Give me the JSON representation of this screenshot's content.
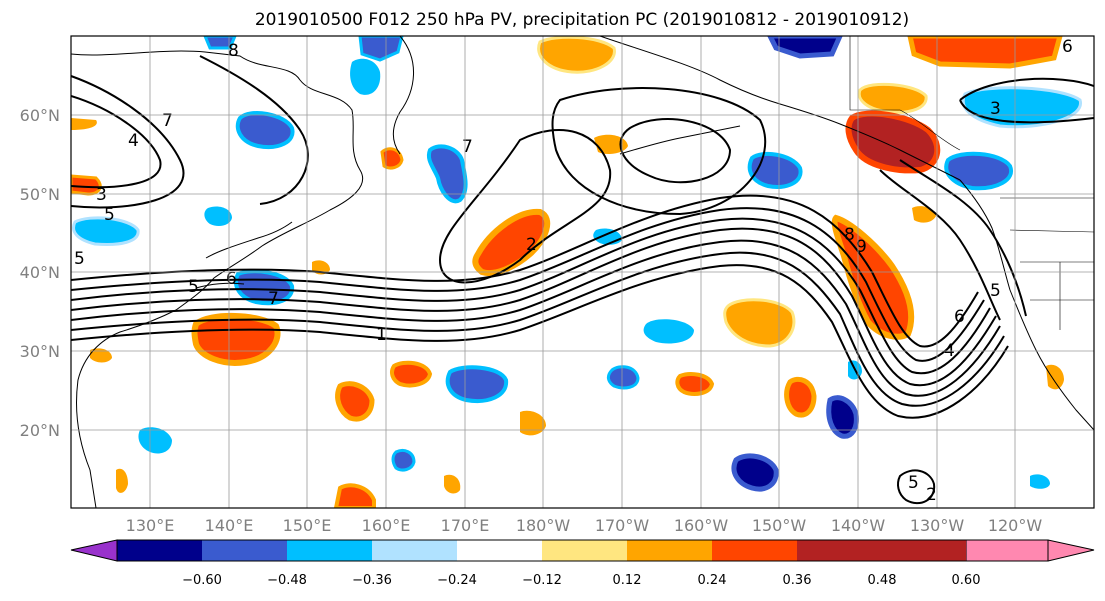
{
  "title": "2019010500 F012 250 hPa PV, precipitation PC (2019010812 - 2019010912)",
  "lat_labels": [
    "60°N",
    "50°N",
    "40°N",
    "30°N",
    "20°N"
  ],
  "lon_labels": [
    "130°E",
    "140°E",
    "150°E",
    "160°E",
    "170°E",
    "180°W",
    "170°W",
    "160°W",
    "150°W",
    "140°W",
    "130°W",
    "120°W"
  ],
  "colorbar": {
    "colors": [
      "#9932cc",
      "#00008b",
      "#3a5bcf",
      "#00bfff",
      "#b0e2ff",
      "#ffffff",
      "#ffe680",
      "#ffa500",
      "#ff4500",
      "#b22222",
      "#ff88b0"
    ],
    "tick_labels": [
      "−0.60",
      "−0.48",
      "−0.36",
      "−0.24",
      "−0.12",
      "0.12",
      "0.24",
      "0.36",
      "0.48",
      "0.60"
    ]
  },
  "contour_labels": [
    "8",
    "7",
    "4",
    "5",
    "3",
    "5",
    "6",
    "5",
    "7",
    "1",
    "2",
    "8",
    "9",
    "7",
    "3",
    "6",
    "5",
    "4",
    "2",
    "5",
    "6"
  ],
  "map": {
    "projection": "equirectangular",
    "lon_range": [
      120,
      250
    ],
    "lat_range": [
      10,
      70
    ],
    "gridlines": true,
    "contour_field": "250 hPa PV",
    "shaded_field": "precipitation PC"
  }
}
